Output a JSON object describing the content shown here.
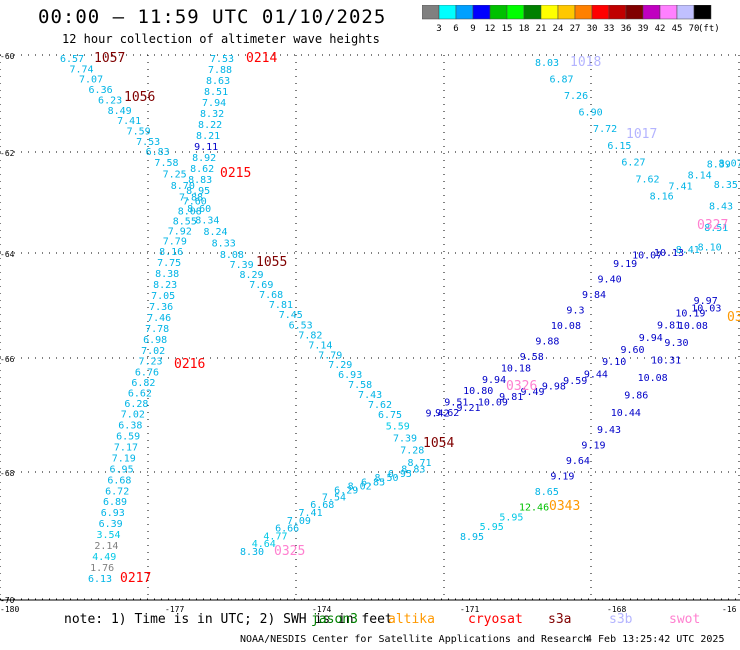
{
  "header": {
    "title": "00:00 — 11:59 UTC 01/10/2025",
    "subtitle": "12 hour collection of altimeter wave heights"
  },
  "colorbar": {
    "unit": "(ft)",
    "ticks": [
      "3",
      "6",
      "9",
      "12",
      "15",
      "18",
      "21",
      "24",
      "27",
      "30",
      "33",
      "36",
      "39",
      "42",
      "45",
      "70"
    ],
    "colors": [
      "#808080",
      "#00ffff",
      "#00a0ff",
      "#0000ff",
      "#00c000",
      "#00ff00",
      "#008000",
      "#ffff00",
      "#ffc800",
      "#ff8000",
      "#ff0000",
      "#c00000",
      "#800000",
      "#c000c0",
      "#ff80ff",
      "#c0c0ff",
      "#000000"
    ]
  },
  "axes": {
    "x_ticks": [
      "-180",
      "-177",
      "-174",
      "-171",
      "-168",
      "-16"
    ],
    "y_ticks": [
      "-60",
      "-62",
      "-64",
      "-66",
      "-68",
      "-70"
    ]
  },
  "colors": {
    "cyan_values": "#00b4e6",
    "blue_values": "#0000c8",
    "pass_red": "#ff0000",
    "pass_darkred": "#800000",
    "pass_lavender": "#b4b4ff",
    "pass_pink": "#ff80d0"
  },
  "passes": [
    {
      "label": "1057",
      "color": "pass_darkred"
    },
    {
      "label": "1056",
      "color": "pass_darkred"
    },
    {
      "label": "0214",
      "color": "pass_red"
    },
    {
      "label": "0215",
      "color": "pass_red"
    },
    {
      "label": "1055",
      "color": "pass_darkred"
    },
    {
      "label": "0216",
      "color": "pass_red"
    },
    {
      "label": "1054",
      "color": "pass_darkred"
    },
    {
      "label": "0217",
      "color": "pass_red"
    },
    {
      "label": "0325",
      "color": "pass_pink"
    },
    {
      "label": "0326",
      "color": "pass_pink"
    },
    {
      "label": "0343",
      "color": "pass_orange"
    },
    {
      "label": "1018",
      "color": "pass_lavender"
    },
    {
      "label": "1017",
      "color": "pass_lavender"
    },
    {
      "label": "0327",
      "color": "pass_pink"
    },
    {
      "label": "03",
      "color": "pass_orange"
    }
  ],
  "values_track_a": [
    "6.57",
    "7.74",
    "7.07",
    "6.36",
    "6.23",
    "8.49",
    "7.41",
    "7.59",
    "7.53",
    "6.83",
    "7.58",
    "7.25",
    "8.70",
    "7.88",
    "8.60",
    "8.34",
    "8.24",
    "8.33",
    "8.08",
    "7.39",
    "8.29",
    "7.69",
    "7.68",
    "7.81",
    "7.45",
    "6.53",
    "7.82",
    "7.14",
    "7.79",
    "7.29",
    "6.93",
    "7.58",
    "7.43",
    "7.62",
    "6.75",
    "5.59",
    "7.39",
    "7.28",
    "8.71",
    "8.83",
    "6.95",
    "8.50",
    "6.85",
    "8.02",
    "6.29",
    "7.54",
    "6.68",
    "7.41",
    "7.09",
    "6.66",
    "4.77",
    "4.64",
    "8.30"
  ],
  "values_track_b": [
    "7.53",
    "7.88",
    "8.63",
    "8.51",
    "7.94",
    "8.32",
    "8.22",
    "8.21",
    "9.11",
    "8.92",
    "8.62",
    "8.83",
    "8.95",
    "7.60",
    "8.08",
    "8.55",
    "7.92",
    "7.79",
    "8.16",
    "7.75",
    "8.38",
    "8.23",
    "7.05",
    "7.36",
    "7.46",
    "7.78",
    "6.98",
    "7.02",
    "7.23",
    "6.76",
    "6.82",
    "6.62",
    "6.28",
    "7.02",
    "6.38",
    "6.59",
    "7.17",
    "7.19",
    "6.95",
    "6.68",
    "6.72",
    "6.89",
    "6.93",
    "6.39",
    "3.54",
    "2.14",
    "4.49",
    "1.76",
    "6.13"
  ],
  "values_track_c": [
    "8.03",
    "6.87",
    "7.26",
    "6.90",
    "7.72",
    "6.15",
    "6.27",
    "7.62",
    "8.16",
    "7.41",
    "8.14",
    "8.39",
    "8.07",
    "8.35",
    "8.43",
    "8.51",
    "8.10",
    "8.41",
    "10.13",
    "10.07",
    "9.19",
    "9.40",
    "9.84",
    "9.3",
    "10.08",
    "9.88",
    "9.58",
    "10.18",
    "9.94",
    "10.80",
    "9.51",
    "9.42",
    "9.62",
    "9.21",
    "10.09",
    "9.81",
    "9.49",
    "9.98",
    "9.59",
    "9.44",
    "9.10",
    "9.60",
    "9.94",
    "9.81",
    "10.19",
    "9.97",
    "10.03",
    "10.08",
    "9.30",
    "10.31",
    "10.08",
    "9.86",
    "10.44",
    "9.43",
    "9.19",
    "9.64",
    "9.19",
    "8.65",
    "12.46",
    "5.95",
    "5.95",
    "8.95"
  ],
  "note": "note:  1) Time is in UTC; 2) SWH is in feet",
  "satellites": [
    {
      "name": "jason3",
      "color": "#008000"
    },
    {
      "name": "altika",
      "color": "#ff9900"
    },
    {
      "name": "cryosat",
      "color": "#ff0000"
    },
    {
      "name": "s3a",
      "color": "#800000"
    },
    {
      "name": "s3b",
      "color": "#b4b4ff"
    },
    {
      "name": "swot",
      "color": "#ff80d0"
    }
  ],
  "footer": {
    "credit": "NOAA/NESDIS Center for Satellite Applications and Research",
    "date": "4 Feb 13:25:42 UTC 2025"
  }
}
